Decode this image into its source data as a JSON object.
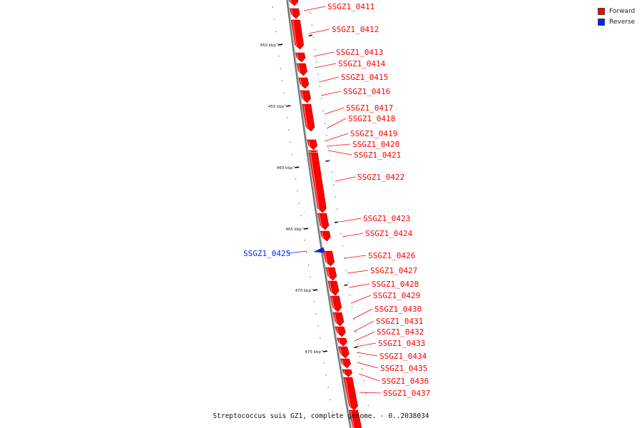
{
  "genome_title": "Streptococcus suis GZ1, complete genome. - 0..2038034",
  "legend": {
    "items": [
      {
        "label": "Forward",
        "color": "#ff0000"
      },
      {
        "label": "Reverse",
        "color": "#0022ff"
      }
    ]
  },
  "colors": {
    "forward": "#ff0000",
    "reverse": "#0022ff",
    "backbone": "#888888"
  },
  "scale_ticks": [
    {
      "label": "450 kbp",
      "kbp": 450
    },
    {
      "label": "455 kbp",
      "kbp": 455
    },
    {
      "label": "460 kbp",
      "kbp": 460
    },
    {
      "label": "465 kbp",
      "kbp": 465
    },
    {
      "label": "470 kbp",
      "kbp": 470
    },
    {
      "label": "475 kbp",
      "kbp": 475
    }
  ],
  "genes": [
    {
      "name": "SSGZ1_0411",
      "strand": "forward"
    },
    {
      "name": "SSGZ1_0412",
      "strand": "forward"
    },
    {
      "name": "SSGZ1_0413",
      "strand": "forward"
    },
    {
      "name": "SSGZ1_0414",
      "strand": "forward"
    },
    {
      "name": "SSGZ1_0415",
      "strand": "forward"
    },
    {
      "name": "SSGZ1_0416",
      "strand": "forward"
    },
    {
      "name": "SSGZ1_0417",
      "strand": "forward"
    },
    {
      "name": "SSGZ1_0418",
      "strand": "forward"
    },
    {
      "name": "SSGZ1_0419",
      "strand": "forward"
    },
    {
      "name": "SSGZ1_0420",
      "strand": "forward"
    },
    {
      "name": "SSGZ1_0421",
      "strand": "forward"
    },
    {
      "name": "SSGZ1_0422",
      "strand": "forward"
    },
    {
      "name": "SSGZ1_0423",
      "strand": "forward"
    },
    {
      "name": "SSGZ1_0424",
      "strand": "forward"
    },
    {
      "name": "SSGZ1_0425",
      "strand": "reverse"
    },
    {
      "name": "SSGZ1_0426",
      "strand": "forward"
    },
    {
      "name": "SSGZ1_0427",
      "strand": "forward"
    },
    {
      "name": "SSGZ1_0428",
      "strand": "forward"
    },
    {
      "name": "SSGZ1_0429",
      "strand": "forward"
    },
    {
      "name": "SSGZ1_0430",
      "strand": "forward"
    },
    {
      "name": "SSGZ1_0431",
      "strand": "forward"
    },
    {
      "name": "SSGZ1_0432",
      "strand": "forward"
    },
    {
      "name": "SSGZ1_0433",
      "strand": "forward"
    },
    {
      "name": "SSGZ1_0434",
      "strand": "forward"
    },
    {
      "name": "SSGZ1_0435",
      "strand": "forward"
    },
    {
      "name": "SSGZ1_0436",
      "strand": "forward"
    },
    {
      "name": "SSGZ1_0437",
      "strand": "forward"
    }
  ]
}
